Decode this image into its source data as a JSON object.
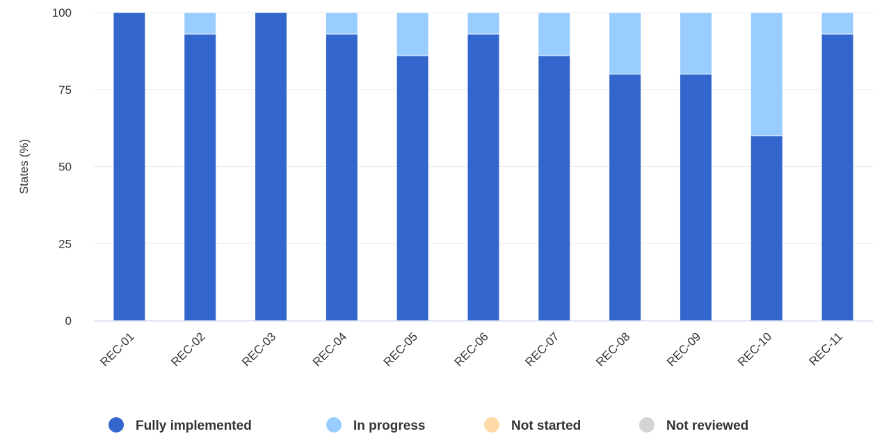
{
  "chart_data": {
    "type": "bar",
    "stacked": true,
    "title": "",
    "xlabel": "",
    "ylabel": "States (%)",
    "ylim": [
      0,
      100
    ],
    "yticks": [
      0,
      25,
      50,
      75,
      100
    ],
    "grid": true,
    "legend_position": "bottom-center",
    "categories": [
      "REC-01",
      "REC-02",
      "REC-03",
      "REC-04",
      "REC-05",
      "REC-06",
      "REC-07",
      "REC-08",
      "REC-09",
      "REC-10",
      "REC-11"
    ],
    "series": [
      {
        "name": "Fully implemented",
        "color": "#3366cc",
        "values": [
          100,
          93,
          100,
          93,
          86,
          93,
          86,
          80,
          80,
          60,
          93
        ]
      },
      {
        "name": "In progress",
        "color": "#99ccff",
        "values": [
          0,
          7,
          0,
          7,
          14,
          7,
          14,
          20,
          20,
          40,
          7
        ]
      },
      {
        "name": "Not started",
        "color": "#ffd9a6",
        "values": [
          0,
          0,
          0,
          0,
          0,
          0,
          0,
          0,
          0,
          0,
          0
        ]
      },
      {
        "name": "Not reviewed",
        "color": "#d3d3d3",
        "values": [
          0,
          0,
          0,
          0,
          0,
          0,
          0,
          0,
          0,
          0,
          0
        ]
      }
    ]
  }
}
